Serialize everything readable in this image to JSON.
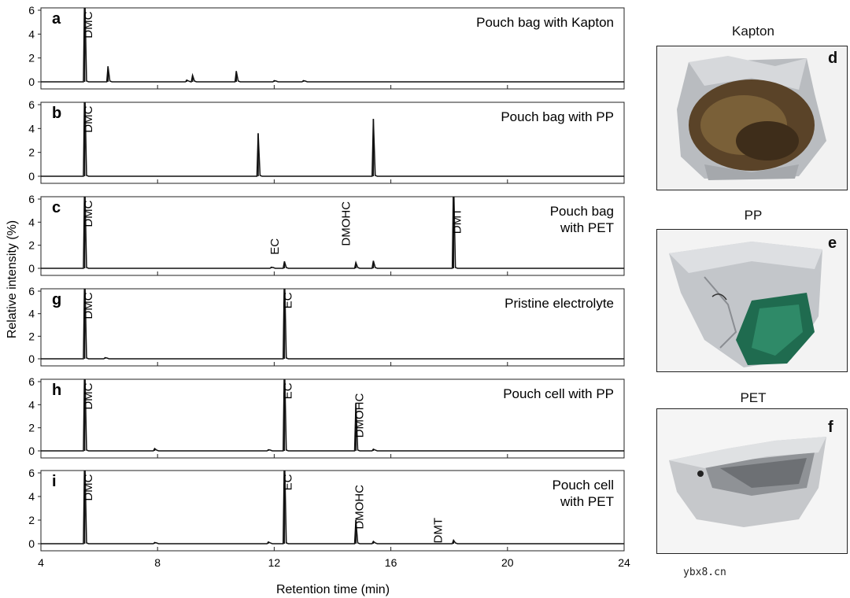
{
  "figure": {
    "ylabel": "Relative intensity (%)",
    "xlabel": "Retention time (min)",
    "watermark": "ybx8.cn"
  },
  "photos": [
    {
      "title": "Kapton",
      "letter": "d",
      "style": "kapton"
    },
    {
      "title": "PP",
      "letter": "e",
      "style": "pp"
    },
    {
      "title": "PET",
      "letter": "f",
      "style": "pet"
    }
  ],
  "chart_data": [
    {
      "type": "line",
      "panel_letter": "a",
      "title": "Pouch bag with Kapton",
      "xlim": [
        4,
        24
      ],
      "ylim": [
        0,
        6
      ],
      "yticks": [
        0,
        2,
        4,
        6
      ],
      "xticks": [
        4,
        8,
        12,
        16,
        20,
        24
      ],
      "show_xticklabels": false,
      "peaks": [
        {
          "x": 5.5,
          "y": 8
        },
        {
          "x": 6.3,
          "y": 1.3
        },
        {
          "x": 9.2,
          "y": 0.55
        },
        {
          "x": 10.7,
          "y": 0.9
        },
        {
          "x": 9.0,
          "y": 0.15
        },
        {
          "x": 12.0,
          "y": 0.1
        },
        {
          "x": 13.0,
          "y": 0.1
        }
      ],
      "labels": [
        {
          "text": "DMC",
          "x": 5.75,
          "y": 5.9
        }
      ]
    },
    {
      "type": "line",
      "panel_letter": "b",
      "title": "Pouch bag with PP",
      "xlim": [
        4,
        24
      ],
      "ylim": [
        0,
        6
      ],
      "yticks": [
        0,
        2,
        4,
        6
      ],
      "xticks": [
        4,
        8,
        12,
        16,
        20,
        24
      ],
      "show_xticklabels": false,
      "peaks": [
        {
          "x": 5.5,
          "y": 8
        },
        {
          "x": 11.45,
          "y": 3.6
        },
        {
          "x": 15.4,
          "y": 4.8
        }
      ],
      "labels": [
        {
          "text": "DMC",
          "x": 5.75,
          "y": 5.9
        }
      ]
    },
    {
      "type": "line",
      "panel_letter": "c",
      "title": "Pouch bag\nwith PET",
      "xlim": [
        4,
        24
      ],
      "ylim": [
        0,
        6
      ],
      "yticks": [
        0,
        2,
        4,
        6
      ],
      "xticks": [
        4,
        8,
        12,
        16,
        20,
        24
      ],
      "show_xticklabels": false,
      "peaks": [
        {
          "x": 5.5,
          "y": 8
        },
        {
          "x": 12.35,
          "y": 0.6
        },
        {
          "x": 14.8,
          "y": 0.5
        },
        {
          "x": 15.4,
          "y": 0.65
        },
        {
          "x": 18.15,
          "y": 8
        },
        {
          "x": 11.9,
          "y": 0.1
        }
      ],
      "labels": [
        {
          "text": "DMC",
          "x": 5.75,
          "y": 5.9
        },
        {
          "text": "EC",
          "x": 12.15,
          "y": 2.6
        },
        {
          "text": "DMOHC",
          "x": 14.6,
          "y": 5.8
        },
        {
          "text": "DMT",
          "x": 18.4,
          "y": 5.2
        }
      ]
    },
    {
      "type": "line",
      "panel_letter": "g",
      "title": "Pristine electrolyte",
      "xlim": [
        4,
        24
      ],
      "ylim": [
        0,
        6
      ],
      "yticks": [
        0,
        2,
        4,
        6
      ],
      "xticks": [
        4,
        8,
        12,
        16,
        20,
        24
      ],
      "show_xticklabels": false,
      "peaks": [
        {
          "x": 5.5,
          "y": 8
        },
        {
          "x": 12.35,
          "y": 8
        },
        {
          "x": 6.2,
          "y": 0.1
        }
      ],
      "labels": [
        {
          "text": "DMC",
          "x": 5.75,
          "y": 5.9
        },
        {
          "text": "EC",
          "x": 12.6,
          "y": 5.9
        }
      ]
    },
    {
      "type": "line",
      "panel_letter": "h",
      "title": "Pouch cell with PP",
      "xlim": [
        4,
        24
      ],
      "ylim": [
        0,
        6
      ],
      "yticks": [
        0,
        2,
        4,
        6
      ],
      "xticks": [
        4,
        8,
        12,
        16,
        20,
        24
      ],
      "show_xticklabels": false,
      "peaks": [
        {
          "x": 5.5,
          "y": 8
        },
        {
          "x": 7.9,
          "y": 0.2
        },
        {
          "x": 12.35,
          "y": 8
        },
        {
          "x": 14.8,
          "y": 4.1
        },
        {
          "x": 11.8,
          "y": 0.1
        },
        {
          "x": 15.4,
          "y": 0.15
        }
      ],
      "labels": [
        {
          "text": "DMC",
          "x": 5.75,
          "y": 5.9
        },
        {
          "text": "EC",
          "x": 12.6,
          "y": 5.9
        },
        {
          "text": "DMOHC",
          "x": 15.05,
          "y": 5.0
        }
      ]
    },
    {
      "type": "line",
      "panel_letter": "i",
      "title": "Pouch cell\nwith PET",
      "xlim": [
        4,
        24
      ],
      "ylim": [
        0,
        6
      ],
      "yticks": [
        0,
        2,
        4,
        6
      ],
      "xticks": [
        4,
        8,
        12,
        16,
        20,
        24
      ],
      "show_xticklabels": true,
      "peaks": [
        {
          "x": 5.5,
          "y": 8
        },
        {
          "x": 12.35,
          "y": 8
        },
        {
          "x": 14.8,
          "y": 2.0
        },
        {
          "x": 15.4,
          "y": 0.2
        },
        {
          "x": 18.15,
          "y": 0.3
        },
        {
          "x": 11.8,
          "y": 0.15
        },
        {
          "x": 7.9,
          "y": 0.1
        }
      ],
      "labels": [
        {
          "text": "DMC",
          "x": 5.75,
          "y": 5.9
        },
        {
          "text": "EC",
          "x": 12.6,
          "y": 5.9
        },
        {
          "text": "DMOHC",
          "x": 15.05,
          "y": 5.0
        },
        {
          "text": "DMT",
          "x": 17.75,
          "y": 2.2
        }
      ]
    }
  ]
}
